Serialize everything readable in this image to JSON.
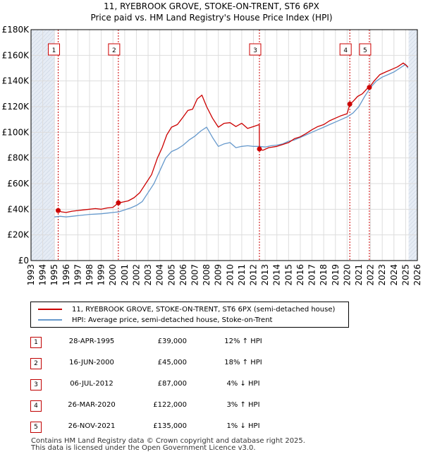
{
  "title_line1": "11, RYEBROOK GROVE, STOKE-ON-TRENT, ST6 6PX",
  "title_line2": "Price paid vs. HM Land Registry's House Price Index (HPI)",
  "legend": {
    "property": "11, RYEBROOK GROVE, STOKE-ON-TRENT, ST6 6PX (semi-detached house)",
    "hpi": "HPI: Average price, semi-detached house, Stoke-on-Trent"
  },
  "colors": {
    "property": "#cc0000",
    "hpi": "#6699cc",
    "shade": "#e6ecf5",
    "grid": "#dddddd",
    "vline": "#cc0000"
  },
  "transactions": [
    {
      "num": "1",
      "date": "28-APR-1995",
      "price": "£39,000",
      "rel": "12% ↑ HPI"
    },
    {
      "num": "2",
      "date": "16-JUN-2000",
      "price": "£45,000",
      "rel": "18% ↑ HPI"
    },
    {
      "num": "3",
      "date": "06-JUL-2012",
      "price": "£87,000",
      "rel": "4% ↓ HPI"
    },
    {
      "num": "4",
      "date": "26-MAR-2020",
      "price": "£122,000",
      "rel": "3% ↑ HPI"
    },
    {
      "num": "5",
      "date": "26-NOV-2021",
      "price": "£135,000",
      "rel": "1% ↓ HPI"
    }
  ],
  "footer": {
    "line1": "Contains HM Land Registry data © Crown copyright and database right 2025.",
    "line2": "This data is licensed under the Open Government Licence v3.0."
  },
  "chart_data": {
    "type": "line",
    "title": "11, RYEBROOK GROVE, STOKE-ON-TRENT, ST6 6PX",
    "subtitle": "Price paid vs. HM Land Registry's House Price Index (HPI)",
    "xlabel": "",
    "ylabel": "",
    "xlim": [
      1993,
      2026
    ],
    "ylim": [
      0,
      180000
    ],
    "y_ticks": [
      0,
      20000,
      40000,
      60000,
      80000,
      100000,
      120000,
      140000,
      160000,
      180000
    ],
    "y_tick_labels": [
      "£0",
      "£20K",
      "£40K",
      "£60K",
      "£80K",
      "£100K",
      "£120K",
      "£140K",
      "£160K",
      "£180K"
    ],
    "x_ticks": [
      1993,
      1994,
      1995,
      1996,
      1997,
      1998,
      1999,
      2000,
      2001,
      2002,
      2003,
      2004,
      2005,
      2006,
      2007,
      2008,
      2009,
      2010,
      2011,
      2012,
      2013,
      2014,
      2015,
      2016,
      2017,
      2018,
      2019,
      2020,
      2021,
      2022,
      2023,
      2024,
      2025,
      2026
    ],
    "x_tick_labels": [
      "1993",
      "1994",
      "1995",
      "1996",
      "1997",
      "1998",
      "1999",
      "2000",
      "2001",
      "2002",
      "2003",
      "2004",
      "2005",
      "2006",
      "2007",
      "2008",
      "2009",
      "2010",
      "2011",
      "2012",
      "2013",
      "2014",
      "2015",
      "2016",
      "2017",
      "2018",
      "2019",
      "2020",
      "2021",
      "2022",
      "2023",
      "2024",
      "2025",
      "2026"
    ],
    "shaded_ranges": [
      [
        1993,
        1995.0
      ],
      [
        2025.25,
        2026
      ]
    ],
    "grid": true,
    "series": [
      {
        "name": "11, RYEBROOK GROVE, STOKE-ON-TRENT, ST6 6PX (semi-detached house)",
        "color": "#cc0000",
        "x": [
          1995.32,
          1995.6,
          1996.0,
          1996.5,
          1997.0,
          1997.5,
          1998.0,
          1998.5,
          1999.0,
          1999.5,
          2000.0,
          2000.46,
          2000.8,
          2001.3,
          2001.8,
          2002.3,
          2002.8,
          2003.3,
          2003.8,
          2004.2,
          2004.6,
          2005.0,
          2005.5,
          2006.0,
          2006.4,
          2006.8,
          2007.2,
          2007.6,
          2008.0,
          2008.5,
          2009.0,
          2009.5,
          2010.0,
          2010.5,
          2011.0,
          2011.5,
          2012.0,
          2012.5,
          2012.51,
          2012.8,
          2013.3,
          2014.0,
          2014.5,
          2015.0,
          2015.5,
          2016.0,
          2016.5,
          2017.0,
          2017.5,
          2018.0,
          2018.5,
          2019.0,
          2019.5,
          2020.0,
          2020.23,
          2020.5,
          2020.9,
          2021.3,
          2021.7,
          2021.9,
          2022.3,
          2022.8,
          2023.3,
          2023.8,
          2024.3,
          2024.8,
          2025.2
        ],
        "y": [
          39000,
          38000,
          37500,
          38500,
          39000,
          39500,
          40000,
          40500,
          40000,
          41000,
          41500,
          45000,
          45500,
          46500,
          49000,
          53000,
          60000,
          67000,
          80000,
          88000,
          98000,
          104000,
          106000,
          112000,
          117000,
          118000,
          126000,
          129000,
          120000,
          111000,
          104000,
          107000,
          107500,
          104500,
          107000,
          103000,
          104500,
          106000,
          87000,
          86000,
          88000,
          89000,
          90500,
          92000,
          95000,
          96500,
          99000,
          102000,
          104500,
          106000,
          109000,
          111000,
          113000,
          114500,
          122000,
          124000,
          128000,
          130000,
          134000,
          135000,
          140000,
          145000,
          147000,
          149000,
          151000,
          154000,
          151000
        ]
      },
      {
        "name": "HPI: Average price, semi-detached house, Stoke-on-Trent",
        "color": "#6699cc",
        "x": [
          1995.0,
          1995.5,
          1996.0,
          1996.5,
          1997.0,
          1997.5,
          1998.0,
          1998.5,
          1999.0,
          1999.5,
          2000.0,
          2000.5,
          2001.0,
          2001.5,
          2002.0,
          2002.5,
          2003.0,
          2003.5,
          2004.0,
          2004.5,
          2005.0,
          2005.5,
          2006.0,
          2006.5,
          2007.0,
          2007.5,
          2008.0,
          2008.5,
          2009.0,
          2009.5,
          2010.0,
          2010.5,
          2011.0,
          2011.5,
          2012.0,
          2012.5,
          2013.0,
          2013.5,
          2014.0,
          2014.5,
          2015.0,
          2015.5,
          2016.0,
          2016.5,
          2017.0,
          2017.5,
          2018.0,
          2018.5,
          2019.0,
          2019.5,
          2020.0,
          2020.5,
          2021.0,
          2021.5,
          2022.0,
          2022.5,
          2023.0,
          2023.5,
          2024.0,
          2024.5,
          2025.0,
          2025.2
        ],
        "y": [
          34000,
          34500,
          34000,
          34500,
          35000,
          35500,
          36000,
          36200,
          36500,
          37000,
          37500,
          38000,
          39500,
          41000,
          43000,
          46000,
          53000,
          60000,
          70000,
          80000,
          85000,
          87000,
          90000,
          94000,
          97000,
          101000,
          104000,
          96000,
          89000,
          91000,
          92000,
          88000,
          89000,
          89500,
          89000,
          89000,
          88500,
          89500,
          90000,
          91000,
          93000,
          94000,
          96000,
          98000,
          100000,
          102000,
          104000,
          106000,
          108000,
          110000,
          112000,
          115000,
          120000,
          128000,
          135000,
          140000,
          143000,
          145000,
          147000,
          150000,
          153000,
          150000
        ]
      }
    ],
    "markers": [
      {
        "label": "1",
        "x": 1995.32,
        "y": 39000
      },
      {
        "label": "2",
        "x": 2000.46,
        "y": 45000
      },
      {
        "label": "3",
        "x": 2012.51,
        "y": 87000
      },
      {
        "label": "4",
        "x": 2020.23,
        "y": 122000
      },
      {
        "label": "5",
        "x": 2021.9,
        "y": 135000
      }
    ]
  }
}
